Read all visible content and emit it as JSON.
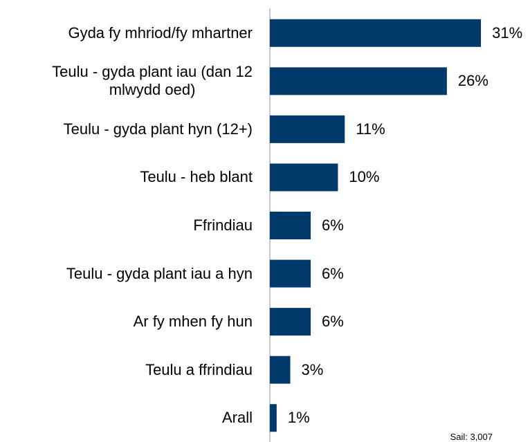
{
  "chart_data": {
    "type": "bar",
    "orientation": "horizontal",
    "categories": [
      "Gyda fy mhriod/fy mhartner",
      "Teulu - gyda plant iau (dan 12\nmlwydd oed)",
      "Teulu - gyda plant hyn (12+)",
      "Teulu - heb blant",
      "Ffrindiau",
      "Teulu - gyda plant iau a hyn",
      "Ar fy mhen fy hun",
      "Teulu a ffrindiau",
      "Arall"
    ],
    "values": [
      31,
      26,
      11,
      10,
      6,
      6,
      6,
      3,
      1
    ],
    "value_labels": [
      "31%",
      "26%",
      "11%",
      "10%",
      "6%",
      "6%",
      "6%",
      "3%",
      "1%"
    ],
    "color": "#003a6b",
    "xlim": [
      0,
      38
    ],
    "footnote": "Sail: 3,007"
  }
}
